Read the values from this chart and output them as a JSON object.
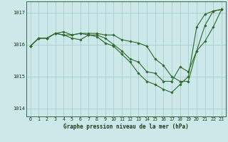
{
  "title": "Graphe pression niveau de la mer (hPa)",
  "background_color": "#cce8e8",
  "grid_color": "#aacccc",
  "line_color": "#2d6a2d",
  "marker_color": "#2d6a2d",
  "xlim": [
    -0.5,
    23.5
  ],
  "ylim": [
    1013.75,
    1017.35
  ],
  "yticks": [
    1014,
    1015,
    1016,
    1017
  ],
  "xticks": [
    0,
    1,
    2,
    3,
    4,
    5,
    6,
    7,
    8,
    9,
    10,
    11,
    12,
    13,
    14,
    15,
    16,
    17,
    18,
    19,
    20,
    21,
    22,
    23
  ],
  "series": [
    [
      1015.95,
      1016.2,
      1016.2,
      1016.35,
      1016.3,
      1016.2,
      1016.15,
      1016.3,
      1016.3,
      1016.2,
      1016.0,
      1015.8,
      1015.55,
      1015.45,
      1015.15,
      1015.1,
      1014.85,
      1014.85,
      1015.3,
      1015.15,
      1015.8,
      1016.6,
      1017.05,
      1017.1
    ],
    [
      1015.95,
      1016.2,
      1016.2,
      1016.35,
      1016.3,
      1016.3,
      1016.35,
      1016.35,
      1016.35,
      1016.3,
      1016.3,
      1016.15,
      1016.1,
      1016.05,
      1015.95,
      1015.55,
      1015.35,
      1015.0,
      1014.85,
      1014.85,
      1015.8,
      1016.1,
      1016.55,
      1017.1
    ],
    [
      1015.95,
      1016.2,
      1016.2,
      1016.35,
      1016.4,
      1016.3,
      1016.35,
      1016.3,
      1016.25,
      1016.05,
      1015.95,
      1015.7,
      1015.45,
      1015.1,
      1014.85,
      1014.75,
      1014.6,
      1014.5,
      1014.75,
      1015.0,
      1016.55,
      1016.95,
      1017.05,
      1017.1
    ]
  ],
  "title_fontsize": 5.5,
  "tick_fontsize": 4.8,
  "linewidth": 0.8,
  "markersize": 1.8
}
